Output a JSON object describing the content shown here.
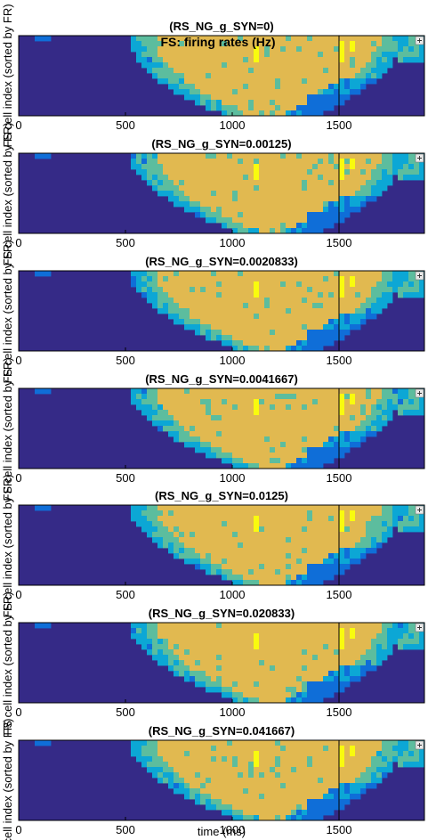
{
  "figure": {
    "suptitle": "FS: firing rates (Hz)",
    "xlabel": "time (ms)",
    "ylabel_full": "cell index (sorted by FR)",
    "ylabel_short": "FS cell index (sorted by FR)"
  },
  "colors": {
    "level0": "#352a87",
    "level1": "#0f6ed8",
    "level2": "#0ca7d5",
    "level3": "#5cbd9e",
    "level4": "#e1b950",
    "level5": "#f9fb0e",
    "axis": "#000000"
  },
  "chart_data": [
    {
      "type": "heatmap",
      "title": "(RS_NG_g_SYN=0)",
      "xlim": [
        0,
        1900
      ],
      "x_ticks": [
        0,
        500,
        1000,
        1500
      ],
      "y_tick_labels": []
    },
    {
      "type": "heatmap",
      "title": "(RS_NG_g_SYN=0.00125)",
      "xlim": [
        0,
        1900
      ],
      "x_ticks": [
        0,
        500,
        1000,
        1500
      ],
      "y_tick_labels": []
    },
    {
      "type": "heatmap",
      "title": "(RS_NG_g_SYN=0.0020833)",
      "xlim": [
        0,
        1900
      ],
      "x_ticks": [
        0,
        500,
        1000,
        1500
      ],
      "y_tick_labels": []
    },
    {
      "type": "heatmap",
      "title": "(RS_NG_g_SYN=0.0041667)",
      "xlim": [
        0,
        1900
      ],
      "x_ticks": [
        0,
        500,
        1000,
        1500
      ],
      "y_tick_labels": []
    },
    {
      "type": "heatmap",
      "title": "(RS_NG_g_SYN=0.0125)",
      "xlim": [
        0,
        1900
      ],
      "x_ticks": [
        0,
        500,
        1000,
        1500
      ],
      "y_tick_labels": []
    },
    {
      "type": "heatmap",
      "title": "(RS_NG_g_SYN=0.020833)",
      "xlim": [
        0,
        1900
      ],
      "x_ticks": [
        0,
        500,
        1000,
        1500
      ],
      "y_tick_labels": []
    },
    {
      "type": "heatmap",
      "title": "(RS_NG_g_SYN=0.041667)",
      "xlim": [
        0,
        1900
      ],
      "x_ticks": [
        0,
        500,
        1000,
        1500
      ],
      "y_tick_labels": []
    }
  ]
}
